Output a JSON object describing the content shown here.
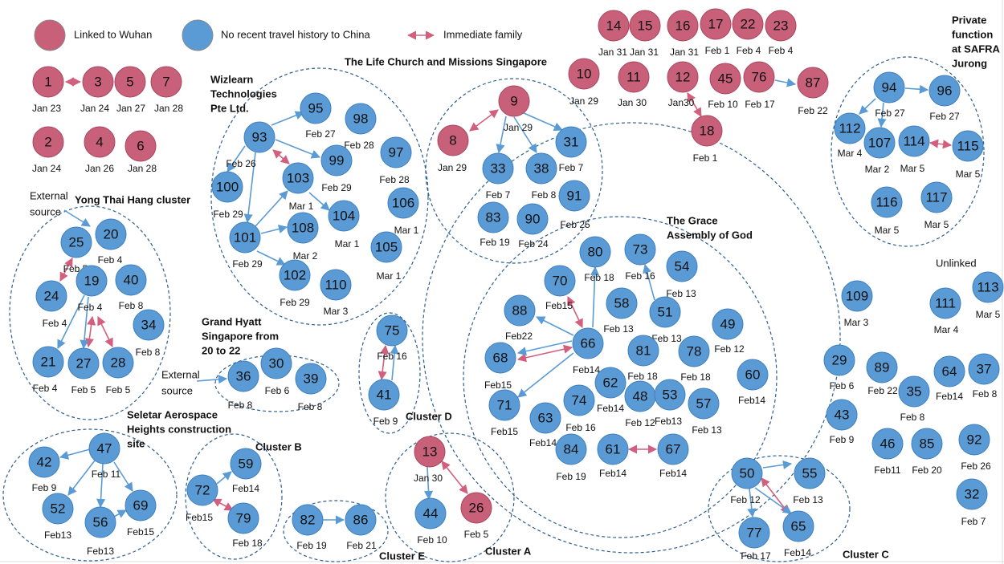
{
  "legend": {
    "items": [
      {
        "label": "Linked to Wuhan",
        "color": "#c9607a"
      },
      {
        "label": "No recent travel history to China",
        "color": "#5b9bd5"
      },
      {
        "label": "Immediate family",
        "color": "#d35f7e"
      }
    ]
  },
  "clusters": [
    {
      "lines": [
        "Wizlearn",
        "Technologies",
        "Pte Ltd."
      ]
    },
    {
      "lines": [
        "The Life Church and Missions Singapore"
      ]
    },
    {
      "lines": [
        "Yong Thai Hang cluster"
      ]
    },
    {
      "lines": [
        "Grand Hyatt",
        "Singapore from",
        "20 to 22"
      ]
    },
    {
      "lines": [
        "Seletar Aerospace",
        "Heights construction",
        "site"
      ]
    },
    {
      "lines": [
        "Cluster B"
      ]
    },
    {
      "lines": [
        "Cluster E"
      ]
    },
    {
      "lines": [
        "Cluster A"
      ]
    },
    {
      "lines": [
        "Cluster D"
      ]
    },
    {
      "lines": [
        "Cluster C"
      ]
    },
    {
      "lines": [
        "The Grace",
        "Assembly of God"
      ]
    },
    {
      "lines": [
        "Private",
        "function",
        "at SAFRA",
        "Jurong"
      ]
    },
    {
      "lines": [
        "Unlinked"
      ]
    }
  ],
  "external_sources": [
    {
      "lines": [
        "External",
        "source"
      ]
    },
    {
      "lines": [
        "External",
        "source"
      ]
    }
  ],
  "nodes": [
    {
      "label": 1,
      "date": "Jan 23",
      "color": "#c9607a"
    },
    {
      "label": 3,
      "date": "Jan 24",
      "color": "#c9607a"
    },
    {
      "label": 5,
      "date": "Jan 27",
      "color": "#c9607a"
    },
    {
      "label": 7,
      "date": "Jan 28",
      "color": "#c9607a"
    },
    {
      "label": 2,
      "date": "Jan 24",
      "color": "#c9607a"
    },
    {
      "label": 4,
      "date": "Jan 26",
      "color": "#c9607a"
    },
    {
      "label": 6,
      "date": "Jan 28",
      "color": "#c9607a"
    },
    {
      "label": 14,
      "date": "Jan 31",
      "color": "#c9607a"
    },
    {
      "label": 15,
      "date": "Jan 31",
      "color": "#c9607a"
    },
    {
      "label": 16,
      "date": "Jan 31",
      "color": "#c9607a"
    },
    {
      "label": 17,
      "date": "Feb 1",
      "color": "#c9607a"
    },
    {
      "label": 22,
      "date": "Feb 4",
      "color": "#c9607a"
    },
    {
      "label": 23,
      "date": "Feb 4",
      "color": "#c9607a"
    },
    {
      "label": 10,
      "date": "Jan 29",
      "color": "#c9607a"
    },
    {
      "label": 11,
      "date": "Jan 30",
      "color": "#c9607a"
    },
    {
      "label": 12,
      "date": "Jan30",
      "color": "#c9607a"
    },
    {
      "label": 45,
      "date": "Feb 10",
      "color": "#c9607a"
    },
    {
      "label": 76,
      "date": "Feb 17",
      "color": "#c9607a"
    },
    {
      "label": 87,
      "date": "Feb 22",
      "color": "#c9607a"
    },
    {
      "label": 18,
      "date": "Feb 1",
      "color": "#c9607a"
    },
    {
      "label": 9,
      "date": "Jan 29",
      "color": "#c9607a"
    },
    {
      "label": 8,
      "date": "Jan 29",
      "color": "#c9607a"
    },
    {
      "label": 31,
      "date": "Feb 7",
      "color": "#5b9bd5"
    },
    {
      "label": 33,
      "date": "Feb 7",
      "color": "#5b9bd5"
    },
    {
      "label": 38,
      "date": "Feb 8",
      "color": "#5b9bd5"
    },
    {
      "label": 91,
      "date": "Feb 25",
      "color": "#5b9bd5"
    },
    {
      "label": 83,
      "date": "Feb 19",
      "color": "#5b9bd5"
    },
    {
      "label": 90,
      "date": "Feb 24",
      "color": "#5b9bd5"
    },
    {
      "label": 93,
      "date": "Feb 26",
      "color": "#5b9bd5"
    },
    {
      "label": 95,
      "date": "Feb 27",
      "color": "#5b9bd5"
    },
    {
      "label": 98,
      "date": "Feb 28",
      "color": "#5b9bd5"
    },
    {
      "label": 97,
      "date": "Feb 28",
      "color": "#5b9bd5"
    },
    {
      "label": 99,
      "date": "Feb 29",
      "color": "#5b9bd5"
    },
    {
      "label": 103,
      "date": "Mar 1",
      "color": "#5b9bd5"
    },
    {
      "label": 100,
      "date": "Feb 29",
      "color": "#5b9bd5"
    },
    {
      "label": 106,
      "date": "Mar 1",
      "color": "#5b9bd5"
    },
    {
      "label": 104,
      "date": "Mar 1",
      "color": "#5b9bd5"
    },
    {
      "label": 108,
      "date": "Mar 2",
      "color": "#5b9bd5"
    },
    {
      "label": 101,
      "date": "Feb 29",
      "color": "#5b9bd5"
    },
    {
      "label": 105,
      "date": "Mar 1",
      "color": "#5b9bd5"
    },
    {
      "label": 102,
      "date": "Feb 29",
      "color": "#5b9bd5"
    },
    {
      "label": 110,
      "date": "Mar 3",
      "color": "#5b9bd5"
    },
    {
      "label": 25,
      "date": "Feb 5",
      "color": "#5b9bd5"
    },
    {
      "label": 20,
      "date": "Feb 4",
      "color": "#5b9bd5"
    },
    {
      "label": 19,
      "date": "Feb 4",
      "color": "#5b9bd5"
    },
    {
      "label": 40,
      "date": "Feb 8",
      "color": "#5b9bd5"
    },
    {
      "label": 24,
      "date": "Feb 4",
      "color": "#5b9bd5"
    },
    {
      "label": 34,
      "date": "Feb 8",
      "color": "#5b9bd5"
    },
    {
      "label": 21,
      "date": "Feb 4",
      "color": "#5b9bd5"
    },
    {
      "label": 27,
      "date": "Feb 5",
      "color": "#5b9bd5"
    },
    {
      "label": 28,
      "date": "Feb 5",
      "color": "#5b9bd5"
    },
    {
      "label": 36,
      "date": "Feb 8",
      "color": "#5b9bd5"
    },
    {
      "label": 30,
      "date": "Feb 6",
      "color": "#5b9bd5"
    },
    {
      "label": 39,
      "date": "Feb 8",
      "color": "#5b9bd5"
    },
    {
      "label": 75,
      "date": "Feb 16",
      "color": "#5b9bd5"
    },
    {
      "label": 41,
      "date": "Feb 9",
      "color": "#5b9bd5"
    },
    {
      "label": 47,
      "date": "Feb 11",
      "color": "#5b9bd5"
    },
    {
      "label": 42,
      "date": "Feb 9",
      "color": "#5b9bd5"
    },
    {
      "label": 52,
      "date": "Feb13",
      "color": "#5b9bd5"
    },
    {
      "label": 56,
      "date": "Feb13",
      "color": "#5b9bd5"
    },
    {
      "label": 69,
      "date": "Feb15",
      "color": "#5b9bd5"
    },
    {
      "label": 59,
      "date": "Feb14",
      "color": "#5b9bd5"
    },
    {
      "label": 72,
      "date": "Feb15",
      "color": "#5b9bd5"
    },
    {
      "label": 79,
      "date": "Feb  18",
      "color": "#5b9bd5"
    },
    {
      "label": 82,
      "date": "Feb 19",
      "color": "#5b9bd5"
    },
    {
      "label": 86,
      "date": "Feb 21",
      "color": "#5b9bd5"
    },
    {
      "label": 13,
      "date": "Jan 30",
      "color": "#c9607a"
    },
    {
      "label": 44,
      "date": "Feb 10",
      "color": "#5b9bd5"
    },
    {
      "label": 26,
      "date": "Feb 5",
      "color": "#c9607a"
    },
    {
      "label": 80,
      "date": "Feb 18",
      "color": "#5b9bd5"
    },
    {
      "label": 73,
      "date": "Feb 16",
      "color": "#5b9bd5"
    },
    {
      "label": 54,
      "date": "Feb 13",
      "color": "#5b9bd5"
    },
    {
      "label": 70,
      "date": "Feb15",
      "color": "#5b9bd5"
    },
    {
      "label": 58,
      "date": "Feb 13",
      "color": "#5b9bd5"
    },
    {
      "label": 51,
      "date": "Feb 13",
      "color": "#5b9bd5"
    },
    {
      "label": 88,
      "date": "Feb22",
      "color": "#5b9bd5"
    },
    {
      "label": 49,
      "date": "Feb 12",
      "color": "#5b9bd5"
    },
    {
      "label": 66,
      "date": "Feb14",
      "color": "#5b9bd5"
    },
    {
      "label": 81,
      "date": "Feb 18",
      "color": "#5b9bd5"
    },
    {
      "label": 78,
      "date": "Feb 18",
      "color": "#5b9bd5"
    },
    {
      "label": 68,
      "date": "Feb15",
      "color": "#5b9bd5"
    },
    {
      "label": 60,
      "date": "Feb14",
      "color": "#5b9bd5"
    },
    {
      "label": 62,
      "date": "Feb14",
      "color": "#5b9bd5"
    },
    {
      "label": 48,
      "date": "Feb 12",
      "color": "#5b9bd5"
    },
    {
      "label": 53,
      "date": "Feb13",
      "color": "#5b9bd5"
    },
    {
      "label": 57,
      "date": "Feb 13",
      "color": "#5b9bd5"
    },
    {
      "label": 71,
      "date": "Feb15",
      "color": "#5b9bd5"
    },
    {
      "label": 74,
      "date": "Feb 16",
      "color": "#5b9bd5"
    },
    {
      "label": 63,
      "date": "Feb14",
      "color": "#5b9bd5"
    },
    {
      "label": 84,
      "date": "Feb 19",
      "color": "#5b9bd5"
    },
    {
      "label": 61,
      "date": "Feb14",
      "color": "#5b9bd5"
    },
    {
      "label": 67,
      "date": "Feb14",
      "color": "#5b9bd5"
    },
    {
      "label": 50,
      "date": "Feb  12",
      "color": "#5b9bd5"
    },
    {
      "label": 55,
      "date": "Feb  13",
      "color": "#5b9bd5"
    },
    {
      "label": 77,
      "date": "Feb  17",
      "color": "#5b9bd5"
    },
    {
      "label": 65,
      "date": "Feb14",
      "color": "#5b9bd5"
    },
    {
      "label": 94,
      "date": "Feb 27",
      "color": "#5b9bd5"
    },
    {
      "label": 96,
      "date": "Feb 27",
      "color": "#5b9bd5"
    },
    {
      "label": 112,
      "date": "Mar 4",
      "color": "#5b9bd5"
    },
    {
      "label": 107,
      "date": "Mar 2",
      "color": "#5b9bd5"
    },
    {
      "label": 114,
      "date": "Mar 5",
      "color": "#5b9bd5"
    },
    {
      "label": 115,
      "date": "Mar 5",
      "color": "#5b9bd5"
    },
    {
      "label": 116,
      "date": "Mar 5",
      "color": "#5b9bd5"
    },
    {
      "label": 117,
      "date": "Mar 5",
      "color": "#5b9bd5"
    },
    {
      "label": 109,
      "date": "Mar 3",
      "color": "#5b9bd5"
    },
    {
      "label": 111,
      "date": "Mar 4",
      "color": "#5b9bd5"
    },
    {
      "label": 113,
      "date": "Mar 5",
      "color": "#5b9bd5"
    },
    {
      "label": 29,
      "date": "Feb 6",
      "color": "#5b9bd5"
    },
    {
      "label": 89,
      "date": "Feb 22",
      "color": "#5b9bd5"
    },
    {
      "label": 35,
      "date": "Feb 8",
      "color": "#5b9bd5"
    },
    {
      "label": 64,
      "date": "Feb14",
      "color": "#5b9bd5"
    },
    {
      "label": 37,
      "date": "Feb 8",
      "color": "#5b9bd5"
    },
    {
      "label": 43,
      "date": "Feb 9",
      "color": "#5b9bd5"
    },
    {
      "label": 46,
      "date": "Feb11",
      "color": "#5b9bd5"
    },
    {
      "label": 85,
      "date": "Feb 20",
      "color": "#5b9bd5"
    },
    {
      "label": 92,
      "date": "Feb 26",
      "color": "#5b9bd5"
    },
    {
      "label": 32,
      "date": "Feb 7",
      "color": "#5b9bd5"
    }
  ]
}
